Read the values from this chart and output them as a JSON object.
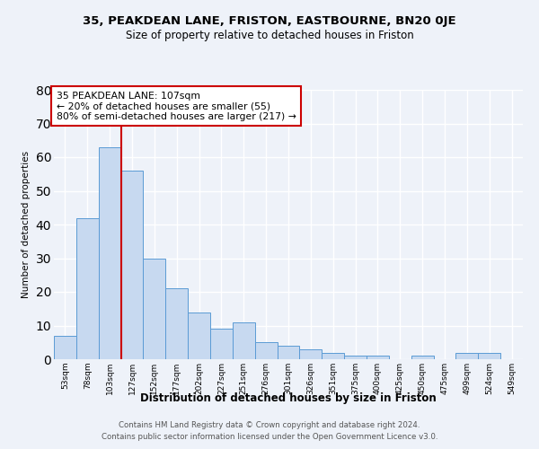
{
  "title": "35, PEAKDEAN LANE, FRISTON, EASTBOURNE, BN20 0JE",
  "subtitle": "Size of property relative to detached houses in Friston",
  "xlabel": "Distribution of detached houses by size in Friston",
  "ylabel": "Number of detached properties",
  "bar_labels": [
    "53sqm",
    "78sqm",
    "103sqm",
    "127sqm",
    "152sqm",
    "177sqm",
    "202sqm",
    "227sqm",
    "251sqm",
    "276sqm",
    "301sqm",
    "326sqm",
    "351sqm",
    "375sqm",
    "400sqm",
    "425sqm",
    "450sqm",
    "475sqm",
    "499sqm",
    "524sqm",
    "549sqm"
  ],
  "bar_heights": [
    7,
    42,
    63,
    56,
    30,
    21,
    14,
    9,
    11,
    5,
    4,
    3,
    2,
    1,
    1,
    0,
    1,
    0,
    2,
    2,
    0
  ],
  "bar_color": "#c7d9f0",
  "bar_edge_color": "#5b9bd5",
  "red_line_x": 2.5,
  "annotation_title": "35 PEAKDEAN LANE: 107sqm",
  "annotation_line1": "← 20% of detached houses are smaller (55)",
  "annotation_line2": "80% of semi-detached houses are larger (217) →",
  "annotation_box_color": "#ffffff",
  "annotation_box_edge_color": "#cc0000",
  "red_line_color": "#cc0000",
  "ylim": [
    0,
    80
  ],
  "yticks": [
    0,
    10,
    20,
    30,
    40,
    50,
    60,
    70,
    80
  ],
  "footer_line1": "Contains HM Land Registry data © Crown copyright and database right 2024.",
  "footer_line2": "Contains public sector information licensed under the Open Government Licence v3.0.",
  "background_color": "#eef2f9",
  "grid_color": "#ffffff"
}
